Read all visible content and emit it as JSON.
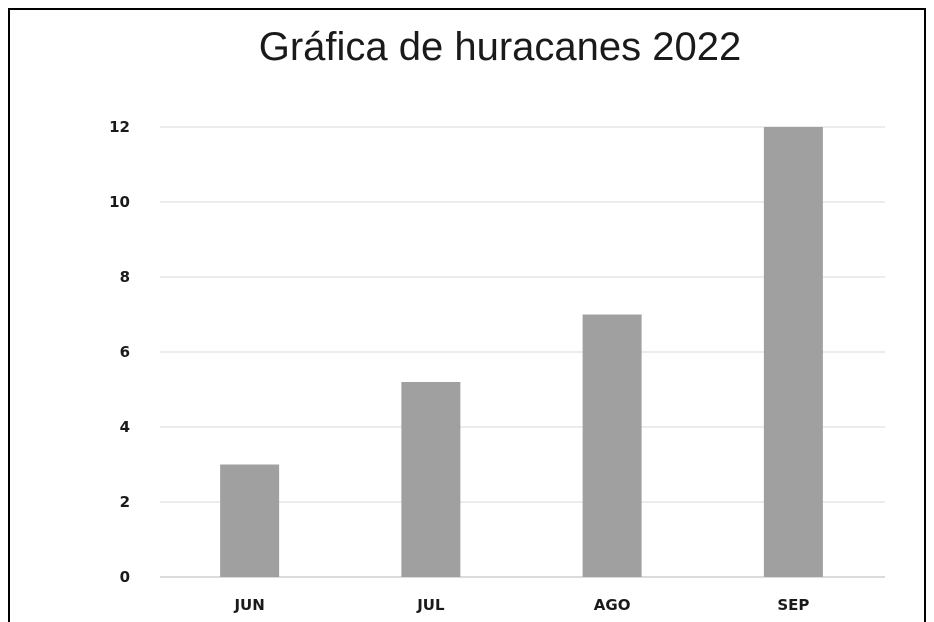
{
  "chart_data": {
    "type": "bar",
    "title": "Gráfica de huracanes 2022",
    "xlabel": "",
    "ylabel": "",
    "categories": [
      "JUN",
      "JUL",
      "AGO",
      "SEP"
    ],
    "values": [
      3,
      5.2,
      7,
      12
    ],
    "ylim": [
      0,
      12
    ],
    "yticks": [
      0,
      2,
      4,
      6,
      8,
      10,
      12
    ],
    "grid": true,
    "legend": "none",
    "colors": {
      "bar": "#a0a0a0",
      "grid": "#d9d9d9",
      "axis": "#cfcfcf",
      "frame": "#000000"
    }
  }
}
